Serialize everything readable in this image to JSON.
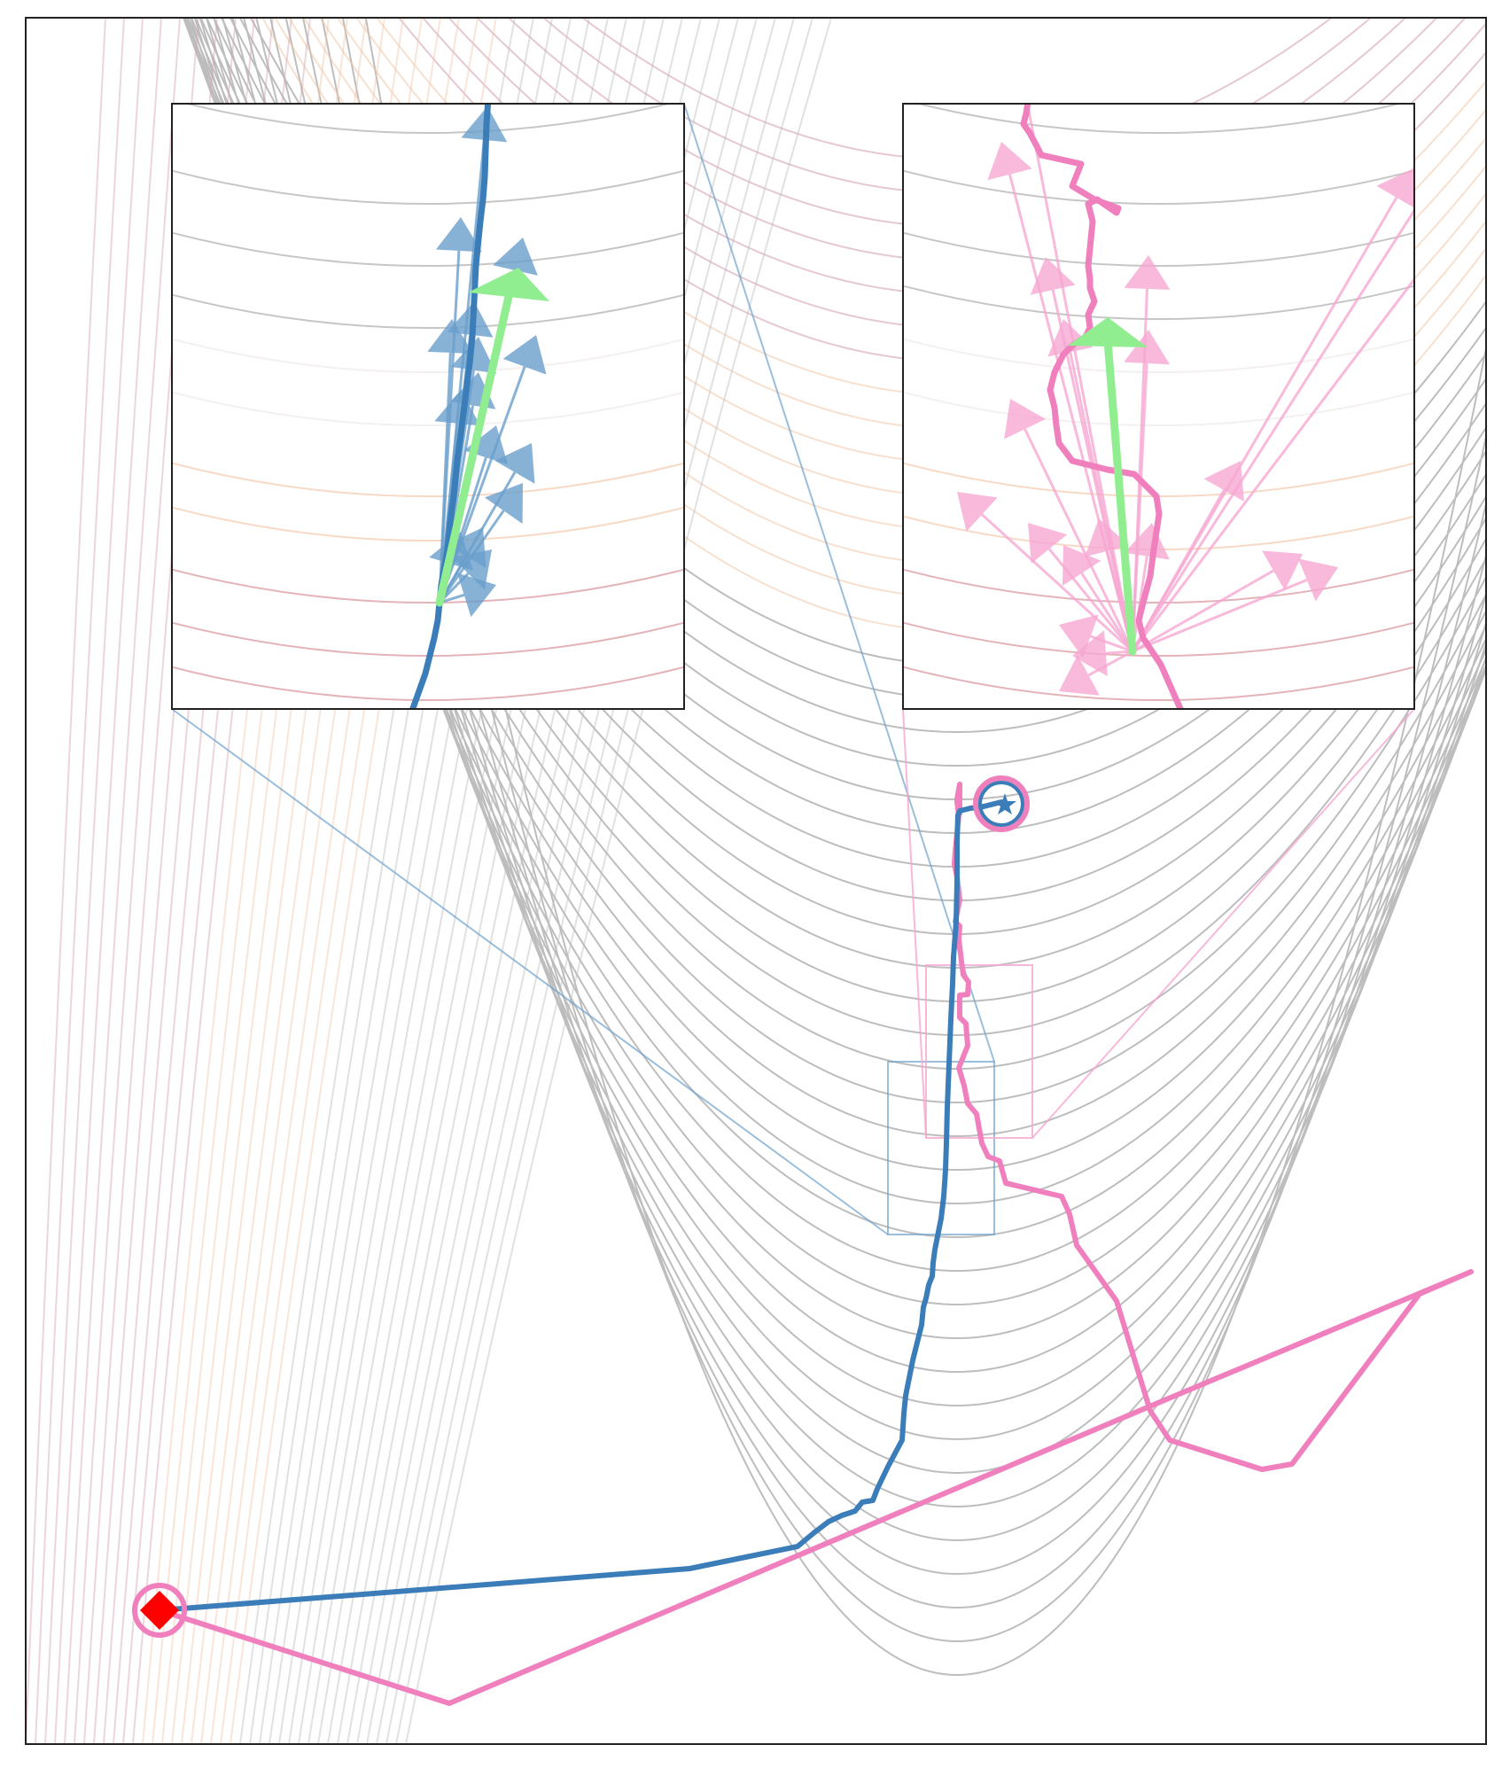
{
  "colors": {
    "background": "#ffffff",
    "contour_gray": "#bdbdbd",
    "contour_pink": "#d4a3b1",
    "contour_peach": "#f2c6a8",
    "path_blue": "#3a7db8",
    "path_pink": "#f07fbd",
    "arrow_green": "#90ee90",
    "start_marker": "#ff0000",
    "start_ring": "#f07fbd",
    "end_ring": "#f07fbd",
    "frame": "#222222"
  },
  "markers": {
    "start": "diamond",
    "end": "star"
  }
}
